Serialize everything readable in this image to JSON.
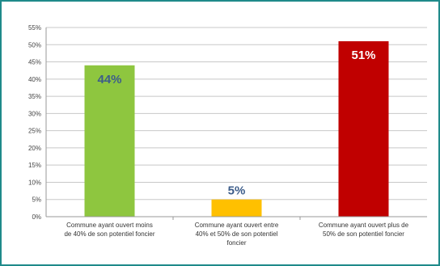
{
  "chart_data": {
    "type": "bar",
    "categories": [
      [
        "Commune ayant ouvert moins",
        "de 40% de son potentiel foncier"
      ],
      [
        "Commune ayant ouvert entre",
        "40% et 50% de son potentiel",
        "foncier"
      ],
      [
        "Commune ayant ouvert plus de",
        "50% de son potentiel foncier"
      ]
    ],
    "values": [
      44,
      5,
      51
    ],
    "data_labels": [
      "44%",
      "5%",
      "51%"
    ],
    "bar_colors": [
      "#8ec63f",
      "#ffc000",
      "#c00000"
    ],
    "label_colors": [
      "#3d5d8a",
      "#3d5d8a",
      "#ffffff"
    ],
    "label_position": [
      "inside-top",
      "above",
      "inside-top"
    ],
    "ylim": [
      0,
      55
    ],
    "yticks": [
      0,
      5,
      10,
      15,
      20,
      25,
      30,
      35,
      40,
      45,
      50,
      55
    ],
    "ytick_labels": [
      "0%",
      "5%",
      "10%",
      "15%",
      "20%",
      "25%",
      "30%",
      "35%",
      "40%",
      "45%",
      "50%",
      "55%"
    ],
    "grid": true,
    "legend": "none"
  }
}
